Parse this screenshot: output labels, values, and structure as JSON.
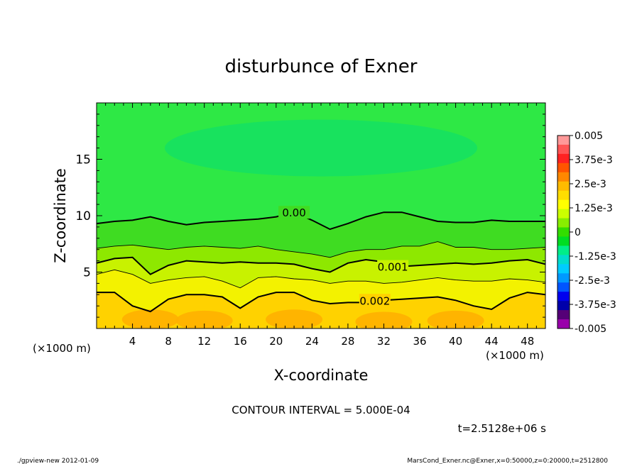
{
  "chart_data": {
    "type": "heatmap",
    "subtype": "filled-contour",
    "title": "disturbunce of Exner",
    "xlabel": "X-coordinate",
    "ylabel": "Z-coordinate",
    "x_unit": "(×1000 m)",
    "y_unit": "(×1000 m)",
    "xlim": [
      0,
      50
    ],
    "ylim": [
      0,
      20
    ],
    "x_ticks": [
      4,
      8,
      12,
      16,
      20,
      24,
      28,
      32,
      36,
      40,
      44,
      48
    ],
    "y_ticks": [
      5,
      10,
      15
    ],
    "contour_interval_label": "CONTOUR INTERVAL = 5.000E-04",
    "time_label": "t=2.5128e+06 s",
    "colorbar": {
      "labels": [
        "0.005",
        "3.75e-3",
        "2.5e-3",
        "1.25e-3",
        "0",
        "-1.25e-3",
        "-2.5e-3",
        "-3.75e-3",
        "-0.005"
      ],
      "range": [
        -0.005,
        0.005
      ],
      "colors": [
        "#f99",
        "#f55",
        "#f22",
        "#f50",
        "#f80",
        "#fb0",
        "#fd0",
        "#ff0",
        "#cf0",
        "#8e0",
        "#3d0",
        "#0d2",
        "#0e8",
        "#0dc",
        "#0cf",
        "#09f",
        "#05f",
        "#00e",
        "#00a",
        "#507",
        "#90a"
      ]
    },
    "contour_levels": [
      {
        "label": "0.00",
        "value": 0.0,
        "approx_z_km": [
          9.3,
          9.5,
          9.6,
          9.9,
          9.5,
          9.2,
          9.4,
          9.5,
          9.6,
          9.7,
          9.9,
          10.3,
          9.6,
          8.8,
          9.3,
          9.9,
          10.3,
          10.3,
          9.9,
          9.5,
          9.4,
          9.4,
          9.6,
          9.5,
          9.5,
          9.5
        ]
      },
      {
        "label": "",
        "value": 0.0005,
        "approx_z_km": [
          7.1,
          7.3,
          7.4,
          7.2,
          7.0,
          7.2,
          7.3,
          7.2,
          7.1,
          7.3,
          7.0,
          6.8,
          6.6,
          6.3,
          6.8,
          7.0,
          7.0,
          7.3,
          7.3,
          7.7,
          7.2,
          7.2,
          7.0,
          7.0,
          7.1,
          7.2
        ]
      },
      {
        "label": "0.001",
        "value": 0.001,
        "approx_z_km": [
          5.8,
          6.2,
          6.3,
          4.8,
          5.6,
          6.0,
          5.9,
          5.8,
          5.9,
          5.8,
          5.8,
          5.7,
          5.3,
          5.0,
          5.8,
          6.1,
          5.9,
          5.5,
          5.6,
          5.7,
          5.8,
          5.7,
          5.8,
          6.0,
          6.1,
          5.7
        ]
      },
      {
        "label": "",
        "value": 0.0015,
        "approx_z_km": [
          4.8,
          5.2,
          4.8,
          4.0,
          4.3,
          4.5,
          4.6,
          4.2,
          3.6,
          4.5,
          4.6,
          4.4,
          4.3,
          4.0,
          4.2,
          4.2,
          4.0,
          4.1,
          4.3,
          4.5,
          4.3,
          4.2,
          4.2,
          4.4,
          4.3,
          4.1
        ]
      },
      {
        "label": "0.002",
        "value": 0.002,
        "approx_z_km": [
          3.2,
          3.2,
          2.0,
          1.5,
          2.6,
          3.0,
          3.0,
          2.8,
          1.8,
          2.8,
          3.2,
          3.2,
          2.5,
          2.2,
          2.3,
          2.3,
          2.5,
          2.6,
          2.7,
          2.8,
          2.5,
          2.0,
          1.7,
          2.7,
          3.2,
          3.0
        ]
      }
    ]
  },
  "footer": {
    "left": "./gpview-new   2012-01-09",
    "right": "MarsCond_Exner.nc@Exner,x=0:50000,z=0:20000,t=2512800"
  }
}
